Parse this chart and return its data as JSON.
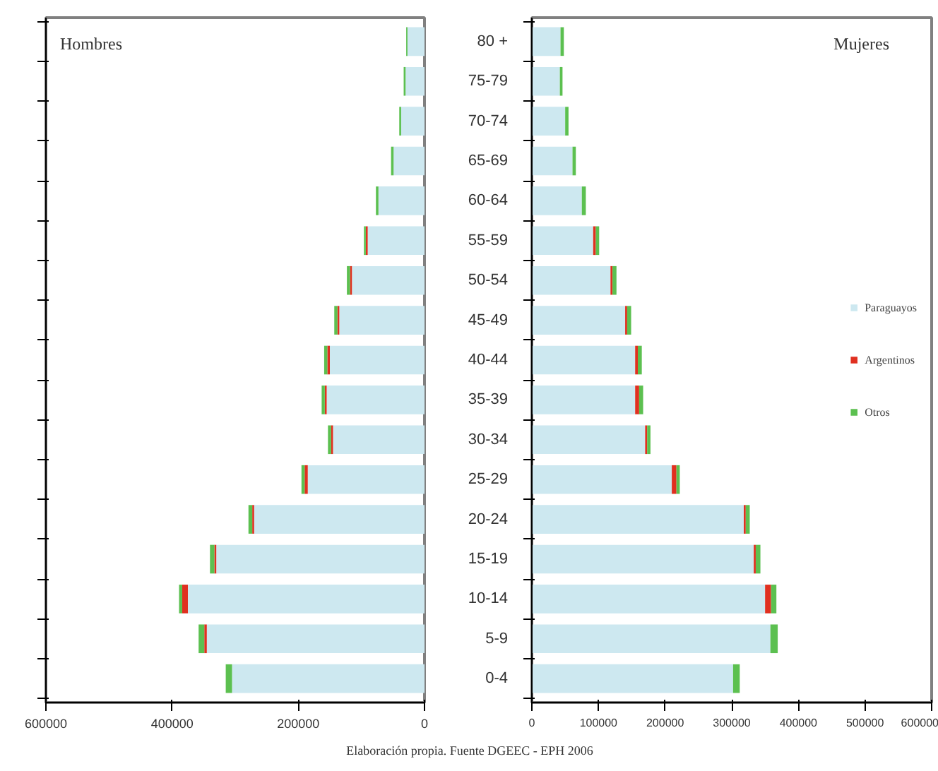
{
  "chart_data": [
    {
      "type": "bar",
      "orientation": "horizontal",
      "stacked": true,
      "tick_labels": "x",
      "grid": false,
      "legend": false,
      "xlim": [
        600000,
        0
      ],
      "xticks": [
        600000,
        400000,
        200000,
        0
      ],
      "annotations": [
        "Hombres"
      ],
      "series": [
        {
          "color": "#cde8f0",
          "values": [
            27000,
            30000,
            37000,
            49000,
            73000,
            90000,
            115000,
            135000,
            150000,
            155000,
            145000,
            185000,
            270000,
            330000,
            375000,
            345000,
            305000
          ]
        },
        {
          "color": "#e03020",
          "values": [
            0,
            0,
            0,
            0,
            0,
            3000,
            3000,
            3000,
            4000,
            3000,
            3000,
            5000,
            3000,
            3000,
            9000,
            4000,
            0
          ]
        },
        {
          "color": "#5cc050",
          "values": [
            2000,
            3000,
            3000,
            4000,
            4000,
            3000,
            5000,
            5000,
            5000,
            5000,
            5000,
            5000,
            6000,
            7000,
            5000,
            9000,
            10000
          ]
        }
      ]
    },
    {
      "type": "bar",
      "orientation": "horizontal",
      "stacked": true,
      "grid": false,
      "legend": "right",
      "categories": [
        "80 +",
        "75-79",
        "70-74",
        "65-69",
        "60-64",
        "55-59",
        "50-54",
        "45-49",
        "40-44",
        "35-39",
        "30-34",
        "25-29",
        "20-24",
        "15-19",
        "10-14",
        "5-9",
        "0-4"
      ],
      "xlim": [
        0,
        600000
      ],
      "xticks": [
        0,
        100000,
        200000,
        300000,
        400000,
        500000,
        600000
      ],
      "annotations": [
        "Mujeres",
        "Elaboración propia. Fuente DGEEC - EPH 2006"
      ],
      "series": [
        {
          "name": "Paraguayos",
          "color": "#cde8f0",
          "values": [
            43000,
            42000,
            50000,
            61000,
            75000,
            92000,
            118000,
            140000,
            155000,
            155000,
            170000,
            210000,
            318000,
            333000,
            350000,
            358000,
            302000
          ]
        },
        {
          "name": "Argentinos",
          "color": "#e03020",
          "values": [
            0,
            0,
            0,
            0,
            0,
            4000,
            3000,
            3000,
            4000,
            6000,
            3000,
            7000,
            3000,
            3000,
            9000,
            0,
            0
          ]
        },
        {
          "name": "Otros",
          "color": "#5cc050",
          "values": [
            5000,
            4000,
            5000,
            5000,
            6000,
            5000,
            6000,
            6000,
            6000,
            6000,
            5000,
            5000,
            6000,
            7000,
            8000,
            11000,
            10000
          ]
        }
      ]
    }
  ]
}
